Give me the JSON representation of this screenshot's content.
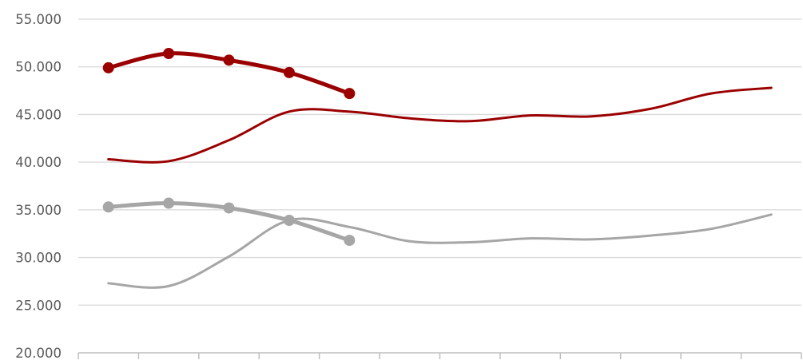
{
  "chart_data": {
    "type": "line",
    "title": "",
    "xlabel": "",
    "ylabel": "",
    "ylim": [
      20000,
      55000
    ],
    "y_ticks": [
      20000,
      25000,
      30000,
      35000,
      40000,
      45000,
      50000,
      55000
    ],
    "y_tick_labels": [
      "20.000",
      "25.000",
      "30.000",
      "35.000",
      "40.000",
      "45.000",
      "50.000",
      "55.000"
    ],
    "x_count": 12,
    "grid": "horizontal",
    "legend": "none",
    "series": [
      {
        "color": "#9b0000",
        "style": "thin-line",
        "values": [
          40300,
          40100,
          42300,
          45300,
          45300,
          44600,
          44300,
          44900,
          44800,
          45600,
          47200,
          47800
        ]
      },
      {
        "color": "#9b0000",
        "style": "thick-line-markers",
        "values": [
          49900,
          51400,
          50700,
          49400,
          47200
        ]
      },
      {
        "color": "#a6a6a6",
        "style": "thin-line",
        "values": [
          27300,
          27000,
          30100,
          33900,
          33200,
          31700,
          31600,
          32000,
          31900,
          32300,
          33000,
          34500
        ]
      },
      {
        "color": "#a6a6a6",
        "style": "thick-line-markers",
        "values": [
          35300,
          35700,
          35200,
          33900,
          31800
        ]
      }
    ],
    "colors": {
      "axis": "#bfbfbf",
      "grid": "#d9d9d9",
      "tick_text": "#595959"
    }
  }
}
